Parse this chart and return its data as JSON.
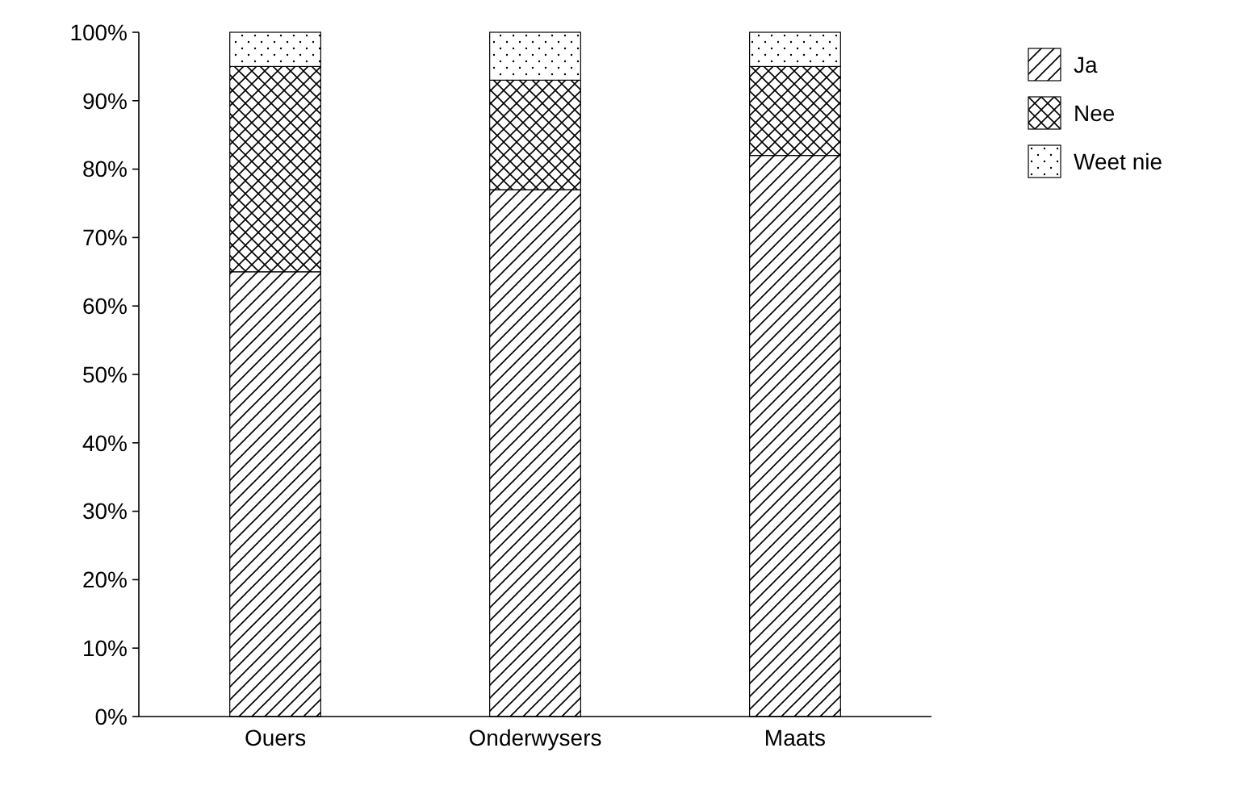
{
  "chart_data": {
    "type": "bar",
    "stacked": true,
    "categories": [
      "Ouers",
      "Onderwysers",
      "Maats"
    ],
    "series": [
      {
        "name": "Ja",
        "color": "#000000",
        "values": [
          65,
          77,
          82
        ]
      },
      {
        "name": "Nee",
        "color": "#000000",
        "values": [
          30,
          16,
          13
        ]
      },
      {
        "name": "Weet nie",
        "color": "#000000",
        "values": [
          5,
          7,
          5
        ]
      }
    ],
    "ylim": [
      0,
      100
    ],
    "yticks": [
      {
        "value": 0,
        "label": "0%"
      },
      {
        "value": 10,
        "label": "10%"
      },
      {
        "value": 20,
        "label": "20%"
      },
      {
        "value": 30,
        "label": "30%"
      },
      {
        "value": 40,
        "label": "40%"
      },
      {
        "value": 50,
        "label": "50%"
      },
      {
        "value": 60,
        "label": "60%"
      },
      {
        "value": 70,
        "label": "70%"
      },
      {
        "value": 80,
        "label": "80%"
      },
      {
        "value": 90,
        "label": "90%"
      },
      {
        "value": 100,
        "label": "100%"
      }
    ],
    "grid": false,
    "legend": "top right"
  }
}
